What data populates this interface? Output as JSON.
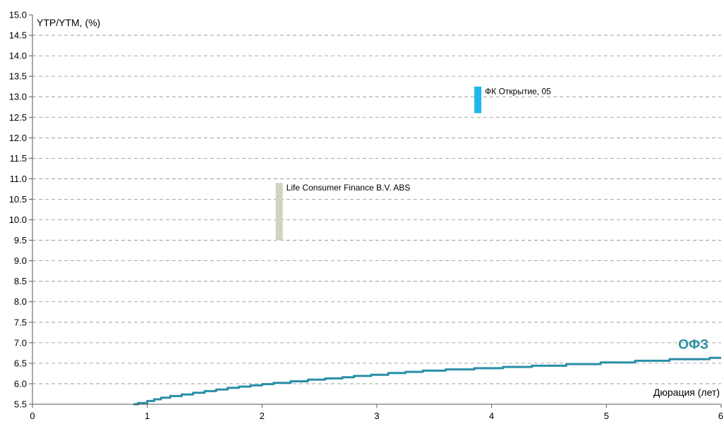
{
  "chart_data": {
    "type": "line",
    "ylabel": "YTP/YTM, (%)",
    "xlabel": "Дюрация (лет)",
    "xlim": [
      0,
      6
    ],
    "ylim": [
      5.5,
      15.0
    ],
    "x_ticks": [
      "0",
      "1",
      "2",
      "3",
      "4",
      "5",
      "6"
    ],
    "y_ticks": [
      "15.0",
      "14.5",
      "14.0",
      "13.5",
      "13.0",
      "12.5",
      "12.0",
      "11.5",
      "11.0",
      "10.5",
      "10.0",
      "9.5",
      "9.0",
      "8.5",
      "8.0",
      "7.5",
      "7.0",
      "6.5",
      "6.0",
      "5.5"
    ],
    "grid": "horizontal dashed",
    "series": [
      {
        "name": "ОФЗ",
        "color": "#2a8fa6",
        "x": [
          0.88,
          0.92,
          1.0,
          1.06,
          1.12,
          1.2,
          1.3,
          1.4,
          1.5,
          1.6,
          1.7,
          1.8,
          1.9,
          2.0,
          2.1,
          2.25,
          2.4,
          2.55,
          2.7,
          2.8,
          2.95,
          3.1,
          3.25,
          3.4,
          3.6,
          3.85,
          4.1,
          4.35,
          4.65,
          4.95,
          5.25,
          5.55,
          5.9,
          6.0
        ],
        "y": [
          5.5,
          5.53,
          5.58,
          5.62,
          5.66,
          5.7,
          5.74,
          5.78,
          5.82,
          5.86,
          5.9,
          5.93,
          5.96,
          5.99,
          6.02,
          6.06,
          6.1,
          6.13,
          6.16,
          6.19,
          6.22,
          6.26,
          6.29,
          6.32,
          6.35,
          6.38,
          6.41,
          6.44,
          6.48,
          6.52,
          6.56,
          6.6,
          6.63,
          6.63
        ]
      }
    ],
    "ranges": [
      {
        "name": "Life Consumer Finance B.V. ABS",
        "x": 2.15,
        "ymin": 9.5,
        "ymax": 10.9,
        "color": "#cfd4c2"
      },
      {
        "name": "ФК Открытие, 05",
        "x": 3.88,
        "ymin": 12.6,
        "ymax": 13.25,
        "color": "#1fb6e8"
      }
    ]
  }
}
